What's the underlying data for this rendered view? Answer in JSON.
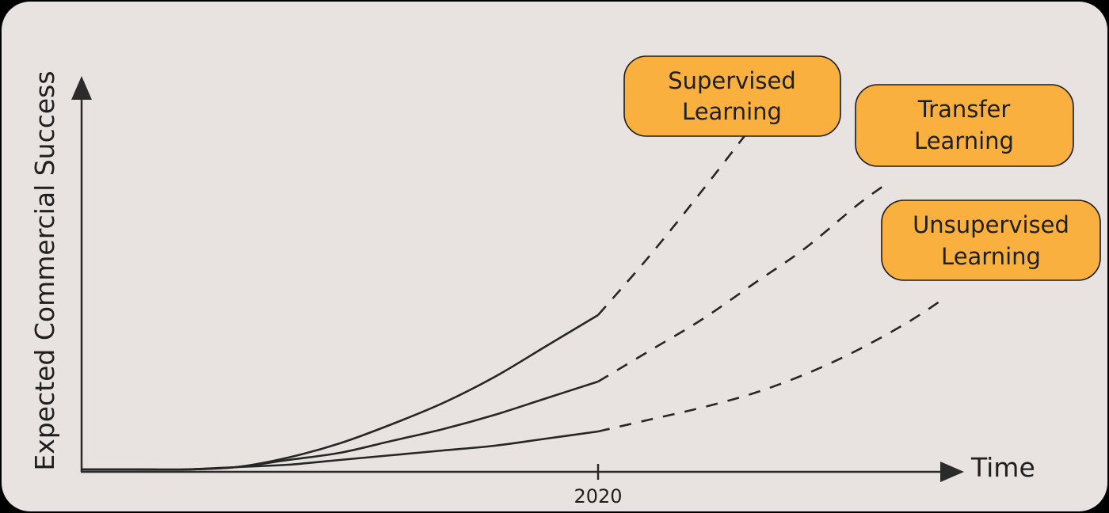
{
  "chart_data": {
    "type": "line",
    "xlabel": "Time",
    "ylabel": "Expected Commercial Success",
    "x_ticks": [
      "2020"
    ],
    "grid": false,
    "series": [
      {
        "name": "Supervised Learning",
        "solid": [
          [
            0,
            0.0
          ],
          [
            0.1,
            0.0
          ],
          [
            0.2,
            0.0
          ],
          [
            0.3,
            0.01
          ],
          [
            0.4,
            0.05
          ],
          [
            0.5,
            0.11
          ],
          [
            0.6,
            0.19
          ],
          [
            0.7,
            0.28
          ],
          [
            0.8,
            0.39
          ],
          [
            0.9,
            0.52
          ],
          [
            1.0,
            0.65
          ]
        ],
        "dashed": [
          [
            1.0,
            0.65
          ],
          [
            1.1,
            0.9
          ],
          [
            1.2,
            1.17
          ],
          [
            1.3,
            1.45
          ]
        ]
      },
      {
        "name": "Transfer Learning",
        "solid": [
          [
            0,
            0.0
          ],
          [
            0.1,
            0.0
          ],
          [
            0.2,
            0.0
          ],
          [
            0.3,
            0.01
          ],
          [
            0.4,
            0.04
          ],
          [
            0.5,
            0.07
          ],
          [
            0.6,
            0.12
          ],
          [
            0.7,
            0.17
          ],
          [
            0.8,
            0.23
          ],
          [
            0.9,
            0.3
          ],
          [
            1.0,
            0.37
          ]
        ],
        "dashed": [
          [
            1.0,
            0.37
          ],
          [
            1.1,
            0.5
          ],
          [
            1.2,
            0.63
          ],
          [
            1.3,
            0.78
          ],
          [
            1.4,
            0.93
          ],
          [
            1.5,
            1.11
          ],
          [
            1.55,
            1.19
          ]
        ]
      },
      {
        "name": "Unsupervised Learning",
        "solid": [
          [
            0,
            0.0
          ],
          [
            0.1,
            0.0
          ],
          [
            0.2,
            0.0
          ],
          [
            0.3,
            0.01
          ],
          [
            0.4,
            0.02
          ],
          [
            0.5,
            0.04
          ],
          [
            0.6,
            0.06
          ],
          [
            0.7,
            0.08
          ],
          [
            0.8,
            0.1
          ],
          [
            0.9,
            0.13
          ],
          [
            1.0,
            0.16
          ]
        ],
        "dashed": [
          [
            1.0,
            0.16
          ],
          [
            1.1,
            0.21
          ],
          [
            1.2,
            0.26
          ],
          [
            1.3,
            0.32
          ],
          [
            1.4,
            0.4
          ],
          [
            1.5,
            0.5
          ],
          [
            1.6,
            0.62
          ],
          [
            1.67,
            0.72
          ]
        ]
      }
    ]
  },
  "labels": {
    "supervised": [
      "Supervised",
      "Learning"
    ],
    "transfer": [
      "Transfer",
      "Learning"
    ],
    "unsupervised": [
      "Unsupervised",
      "Learning"
    ]
  },
  "colors": {
    "background": "#e8e3e0",
    "box_fill": "#f9b03e",
    "line": "#262626"
  }
}
